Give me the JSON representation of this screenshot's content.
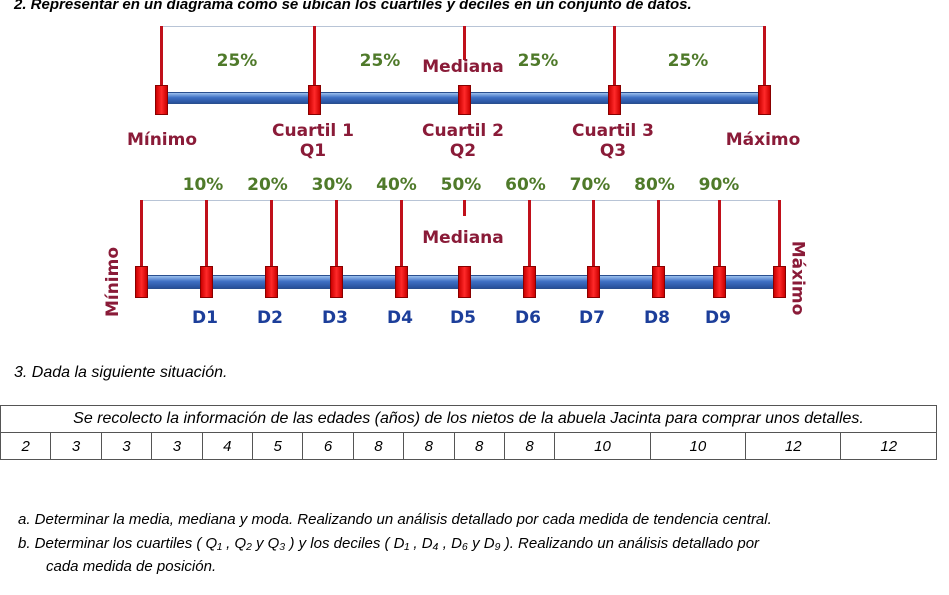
{
  "q2": {
    "title": "2.  Representar en un diagrama como se ubican los cuartiles y deciles en un conjunto de datos."
  },
  "quartiles": {
    "percents": [
      "25%",
      "25%",
      "25%",
      "25%"
    ],
    "median": "Mediana",
    "labels": [
      [
        "Mínimo",
        ""
      ],
      [
        "Cuartil 1",
        "Q1"
      ],
      [
        "Cuartil 2",
        "Q2"
      ],
      [
        "Cuartil 3",
        "Q3"
      ],
      [
        "Máximo",
        ""
      ]
    ]
  },
  "deciles": {
    "percents": [
      "10%",
      "20%",
      "30%",
      "40%",
      "50%",
      "60%",
      "70%",
      "80%",
      "90%"
    ],
    "median": "Mediana",
    "labels": [
      "D1",
      "D2",
      "D3",
      "D4",
      "D5",
      "D6",
      "D7",
      "D8",
      "D9"
    ],
    "min": "Mínimo",
    "max": "Máximo"
  },
  "q3": {
    "title": "3.  Dada la siguiente situación.",
    "table_header": "Se recolecto la información de las edades (años) de los nietos de la abuela Jacinta para comprar unos detalles.",
    "values": [
      "2",
      "3",
      "3",
      "3",
      "4",
      "5",
      "6",
      "8",
      "8",
      "8",
      "8",
      "10",
      "10",
      "12",
      "12"
    ],
    "a": "a.  Determinar la media, mediana y moda. Realizando un análisis detallado por cada medida de tendencia central.",
    "b1": "b.  Determinar los cuartiles ( Q₁ , Q₂  y  Q₃ ) y los deciles ( D₁ , D₄ , D₆ y  D₉ ). Realizando un análisis detallado por",
    "b2": "cada medida de posición."
  }
}
